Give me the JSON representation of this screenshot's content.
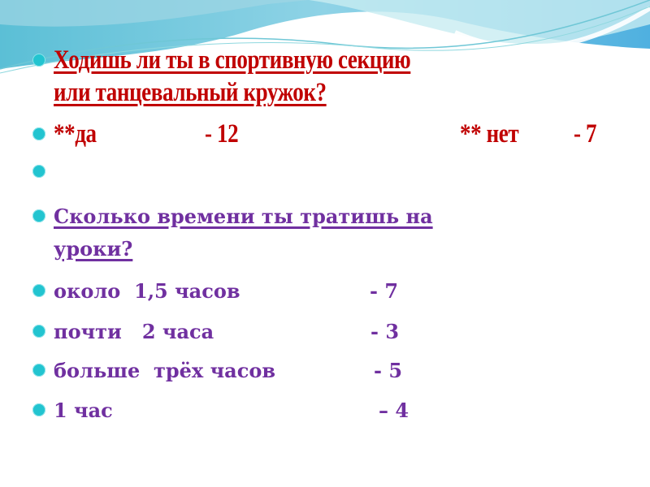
{
  "colors": {
    "question1": "#c00000",
    "question2": "#7030a0",
    "bullet": "#22c4d0"
  },
  "q1": {
    "line1": "Ходишь ли ты в спортивную секцию",
    "line2": "или танцевальный кружок?",
    "yes_label": "**да",
    "yes_value": "- 12",
    "no_label": "** нет",
    "no_value": "- 7"
  },
  "q2": {
    "line1": "Сколько времени ты тратишь на",
    "line2": "уроки?",
    "answers": [
      {
        "label": "около  1,5 часов",
        "value": "- 7"
      },
      {
        "label": "почти   2 часа",
        "value": "- 3"
      },
      {
        "label": "больше  трёх часов",
        "value": "- 5"
      },
      {
        "label": "1 час",
        "value": "– 4"
      }
    ]
  }
}
